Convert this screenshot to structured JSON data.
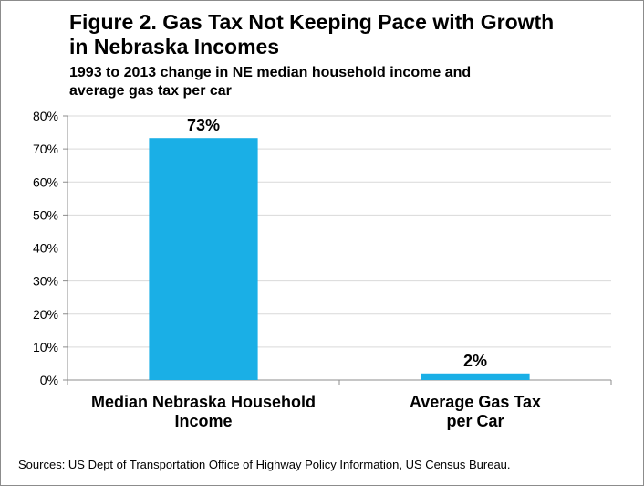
{
  "header": {
    "title_line1": "Figure 2. Gas Tax Not Keeping Pace with Growth",
    "title_line2": "in Nebraska Incomes",
    "subtitle_line1": "1993 to 2013 change in NE median household income and",
    "subtitle_line2": "average gas tax per car"
  },
  "footer": {
    "source": "Sources: US Dept of Transportation Office of Highway Policy Information, US Census Bureau."
  },
  "chart_data": {
    "type": "bar",
    "title": "Figure 2. Gas Tax Not Keeping Pace with Growth in Nebraska Incomes",
    "subtitle": "1993 to 2013 change in NE median household income and average gas tax per car",
    "categories": [
      [
        "Median Nebraska Household",
        "Income"
      ],
      [
        "Average Gas Tax",
        "per Car"
      ]
    ],
    "values": [
      73.3,
      2
    ],
    "data_labels": [
      "73%",
      "2%"
    ],
    "yticks": [
      0,
      10,
      20,
      30,
      40,
      50,
      60,
      70,
      80
    ],
    "ytick_labels": [
      "0%",
      "10%",
      "20%",
      "30%",
      "40%",
      "50%",
      "60%",
      "70%",
      "80%"
    ],
    "ylim": [
      0,
      80
    ],
    "xlabel": "",
    "ylabel": "",
    "grid": true,
    "legend": "none",
    "bar_color": "#1AAFE6",
    "grid_color": "#D9D9D9",
    "axis_color": "#8C8C8C"
  }
}
